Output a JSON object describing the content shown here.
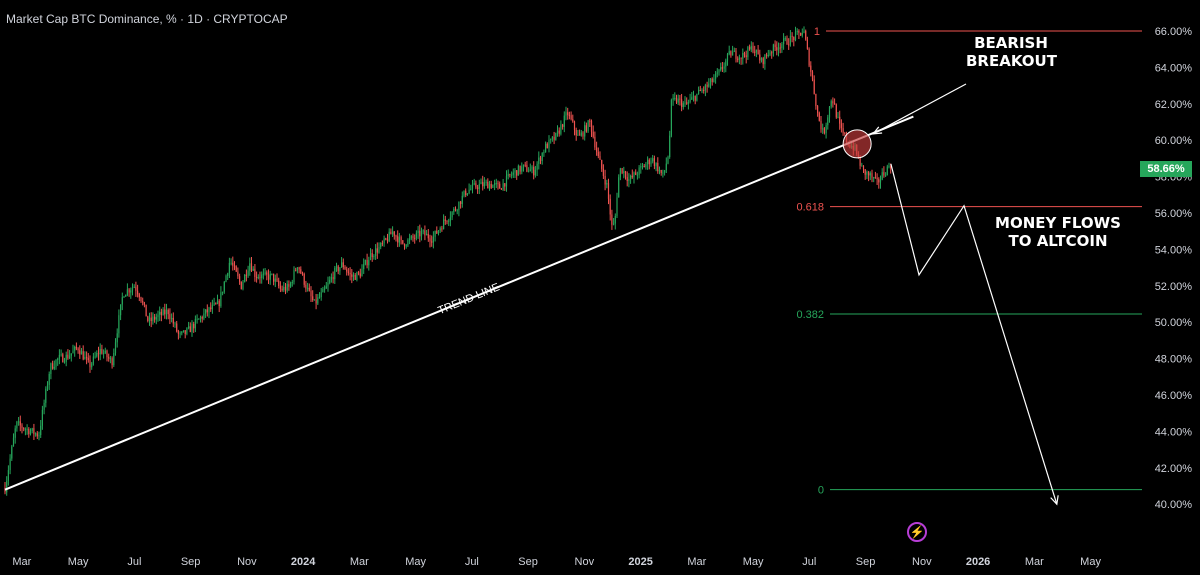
{
  "header": {
    "title": "Market Cap BTC Dominance, % · 1D · CRYPTOCAP"
  },
  "price_badge": "58.66%",
  "annotations": {
    "bearish_line1": "BEARISH",
    "bearish_line2": "BREAKOUT",
    "money_line1": "MONEY FLOWS",
    "money_line2": "TO ALTCOIN",
    "trend_line": "TREND LINE",
    "peak_marker": "1"
  },
  "colors": {
    "background": "#000000",
    "up": "#26a65b",
    "down": "#ef5350",
    "trend": "#ffffff"
  },
  "chart_data": {
    "type": "line",
    "title": "Market Cap BTC Dominance, % · 1D · CRYPTOCAP",
    "xlabel": "",
    "ylabel": "",
    "ylim": [
      39.5,
      66.5
    ],
    "y_ticks": [
      "66.00%",
      "64.00%",
      "62.00%",
      "60.00%",
      "58.00%",
      "56.00%",
      "54.00%",
      "52.00%",
      "50.00%",
      "48.00%",
      "46.00%",
      "44.00%",
      "42.00%",
      "40.00%"
    ],
    "y_tick_values": [
      66,
      64,
      62,
      60,
      58,
      56,
      54,
      52,
      50,
      48,
      46,
      44,
      42,
      40
    ],
    "x_ticks": [
      "Mar",
      "May",
      "Jul",
      "Sep",
      "Nov",
      "2024",
      "Mar",
      "May",
      "Jul",
      "Sep",
      "Nov",
      "2025",
      "Mar",
      "May",
      "Jul",
      "Sep",
      "Nov",
      "2026",
      "Mar",
      "May"
    ],
    "x_tick_months": [
      2,
      4,
      6,
      8,
      10,
      12,
      14,
      16,
      18,
      20,
      22,
      24,
      26,
      28,
      30,
      32,
      34,
      36,
      38,
      40
    ],
    "x_range_months": [
      1.4,
      41.9
    ],
    "series": [
      {
        "x": [
          1.4,
          1.8,
          2.2,
          2.6,
          3.0,
          3.3,
          3.6,
          4.0,
          4.4,
          4.8,
          5.2,
          5.6,
          6.0,
          6.2,
          6.5,
          6.8,
          7.2,
          7.6,
          7.9,
          8.2,
          8.6,
          9.0,
          9.4,
          9.8,
          10.1,
          10.3,
          10.6,
          10.9,
          11.2,
          11.5,
          11.8,
          12.2,
          12.4,
          12.8,
          13.1,
          13.4,
          13.7,
          14.0,
          14.4,
          14.8,
          15.2,
          15.5,
          15.8,
          16.2,
          16.6,
          17.0,
          17.4,
          17.8,
          18.2,
          18.6,
          19.0,
          19.4,
          19.8,
          20.2,
          20.6,
          21.0,
          21.4,
          21.8,
          22.2,
          22.5,
          22.8,
          23.0,
          23.1,
          23.2,
          23.3,
          23.6,
          24.0,
          24.4,
          24.8,
          25.0,
          25.1,
          25.3,
          25.6,
          26.0,
          26.4,
          26.8,
          27.2,
          27.6,
          28.0,
          28.3,
          28.6,
          29.0,
          29.4,
          29.8,
          30.1,
          30.3,
          30.5,
          30.8,
          31.1,
          31.4,
          31.6,
          31.9,
          32.2,
          32.4,
          32.6,
          32.9
        ],
        "values": [
          40.9,
          44.4,
          44.1,
          43.8,
          47.5,
          48.0,
          48.1,
          48.6,
          47.6,
          48.5,
          47.8,
          51.6,
          52.0,
          51.5,
          50.0,
          50.3,
          50.6,
          49.2,
          49.5,
          50.0,
          50.6,
          51.0,
          53.4,
          52.0,
          53.3,
          52.6,
          52.5,
          52.5,
          51.8,
          51.9,
          53.2,
          51.6,
          51.0,
          51.8,
          52.7,
          53.2,
          52.5,
          52.6,
          53.7,
          54.2,
          55.0,
          54.3,
          54.5,
          54.9,
          54.6,
          55.5,
          56.2,
          57.2,
          57.5,
          57.6,
          57.4,
          58.1,
          58.5,
          58.3,
          59.6,
          60.2,
          61.5,
          60.1,
          61.0,
          59.0,
          57.5,
          55.0,
          55.8,
          57.8,
          58.5,
          57.8,
          58.4,
          59.0,
          58.0,
          59.3,
          62.1,
          62.2,
          61.9,
          62.5,
          63.0,
          63.7,
          64.8,
          64.6,
          65.1,
          64.3,
          64.9,
          65.3,
          65.6,
          66.0,
          63.4,
          61.4,
          60.3,
          62.4,
          60.6,
          59.8,
          59.6,
          58.3,
          58.0,
          57.6,
          58.1,
          58.7
        ]
      }
    ],
    "trend_line": {
      "from": [
        1.4,
        40.8
      ],
      "to": [
        33.7,
        61.3
      ],
      "label": "TREND LINE"
    },
    "fib_levels": [
      {
        "label": "1",
        "value": 66.0,
        "color": "#ef5350"
      },
      {
        "label": "0.618",
        "value": 56.35,
        "color": "#ef5350"
      },
      {
        "label": "0.382",
        "value": 50.45,
        "color": "#26a65b"
      },
      {
        "label": "0",
        "value": 40.8,
        "color": "#26a65b"
      }
    ],
    "projection": {
      "x": [
        32.9,
        33.9,
        35.5,
        38.8
      ],
      "values": [
        58.7,
        52.6,
        56.4,
        40.0
      ]
    },
    "breakout_point": {
      "x": 31.7,
      "value": 59.8
    },
    "grid": false,
    "legend": "none"
  }
}
